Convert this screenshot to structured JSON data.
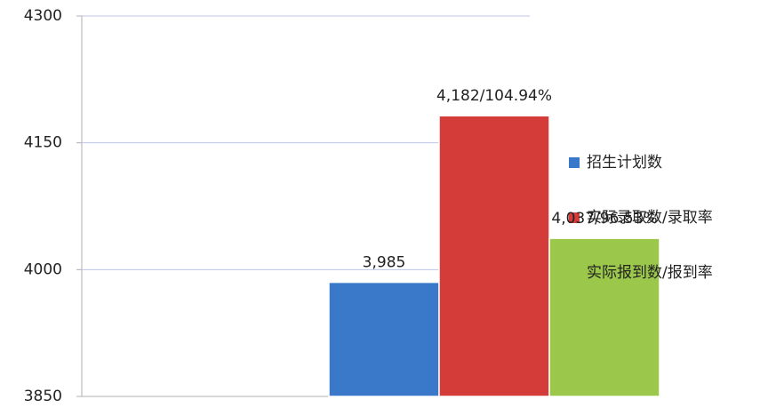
{
  "chart_data": {
    "type": "bar",
    "series": [
      {
        "name": "招生计划数",
        "color": "#3a78c9",
        "values": [
          3985
        ],
        "value_labels": [
          "3,985"
        ]
      },
      {
        "name": "实际录取数/录取率",
        "color": "#d43c3a",
        "values": [
          4182
        ],
        "value_labels": [
          "4,182/104.94%"
        ]
      },
      {
        "name": "实际报到数/报到率",
        "color": "#9bc84a",
        "values": [
          4037
        ],
        "value_labels": [
          "4,037/96.53%"
        ]
      }
    ],
    "ylim": [
      3850,
      4300
    ],
    "yticks": [
      3850,
      4000,
      4150,
      4300
    ],
    "grid": true,
    "legend": "right"
  }
}
